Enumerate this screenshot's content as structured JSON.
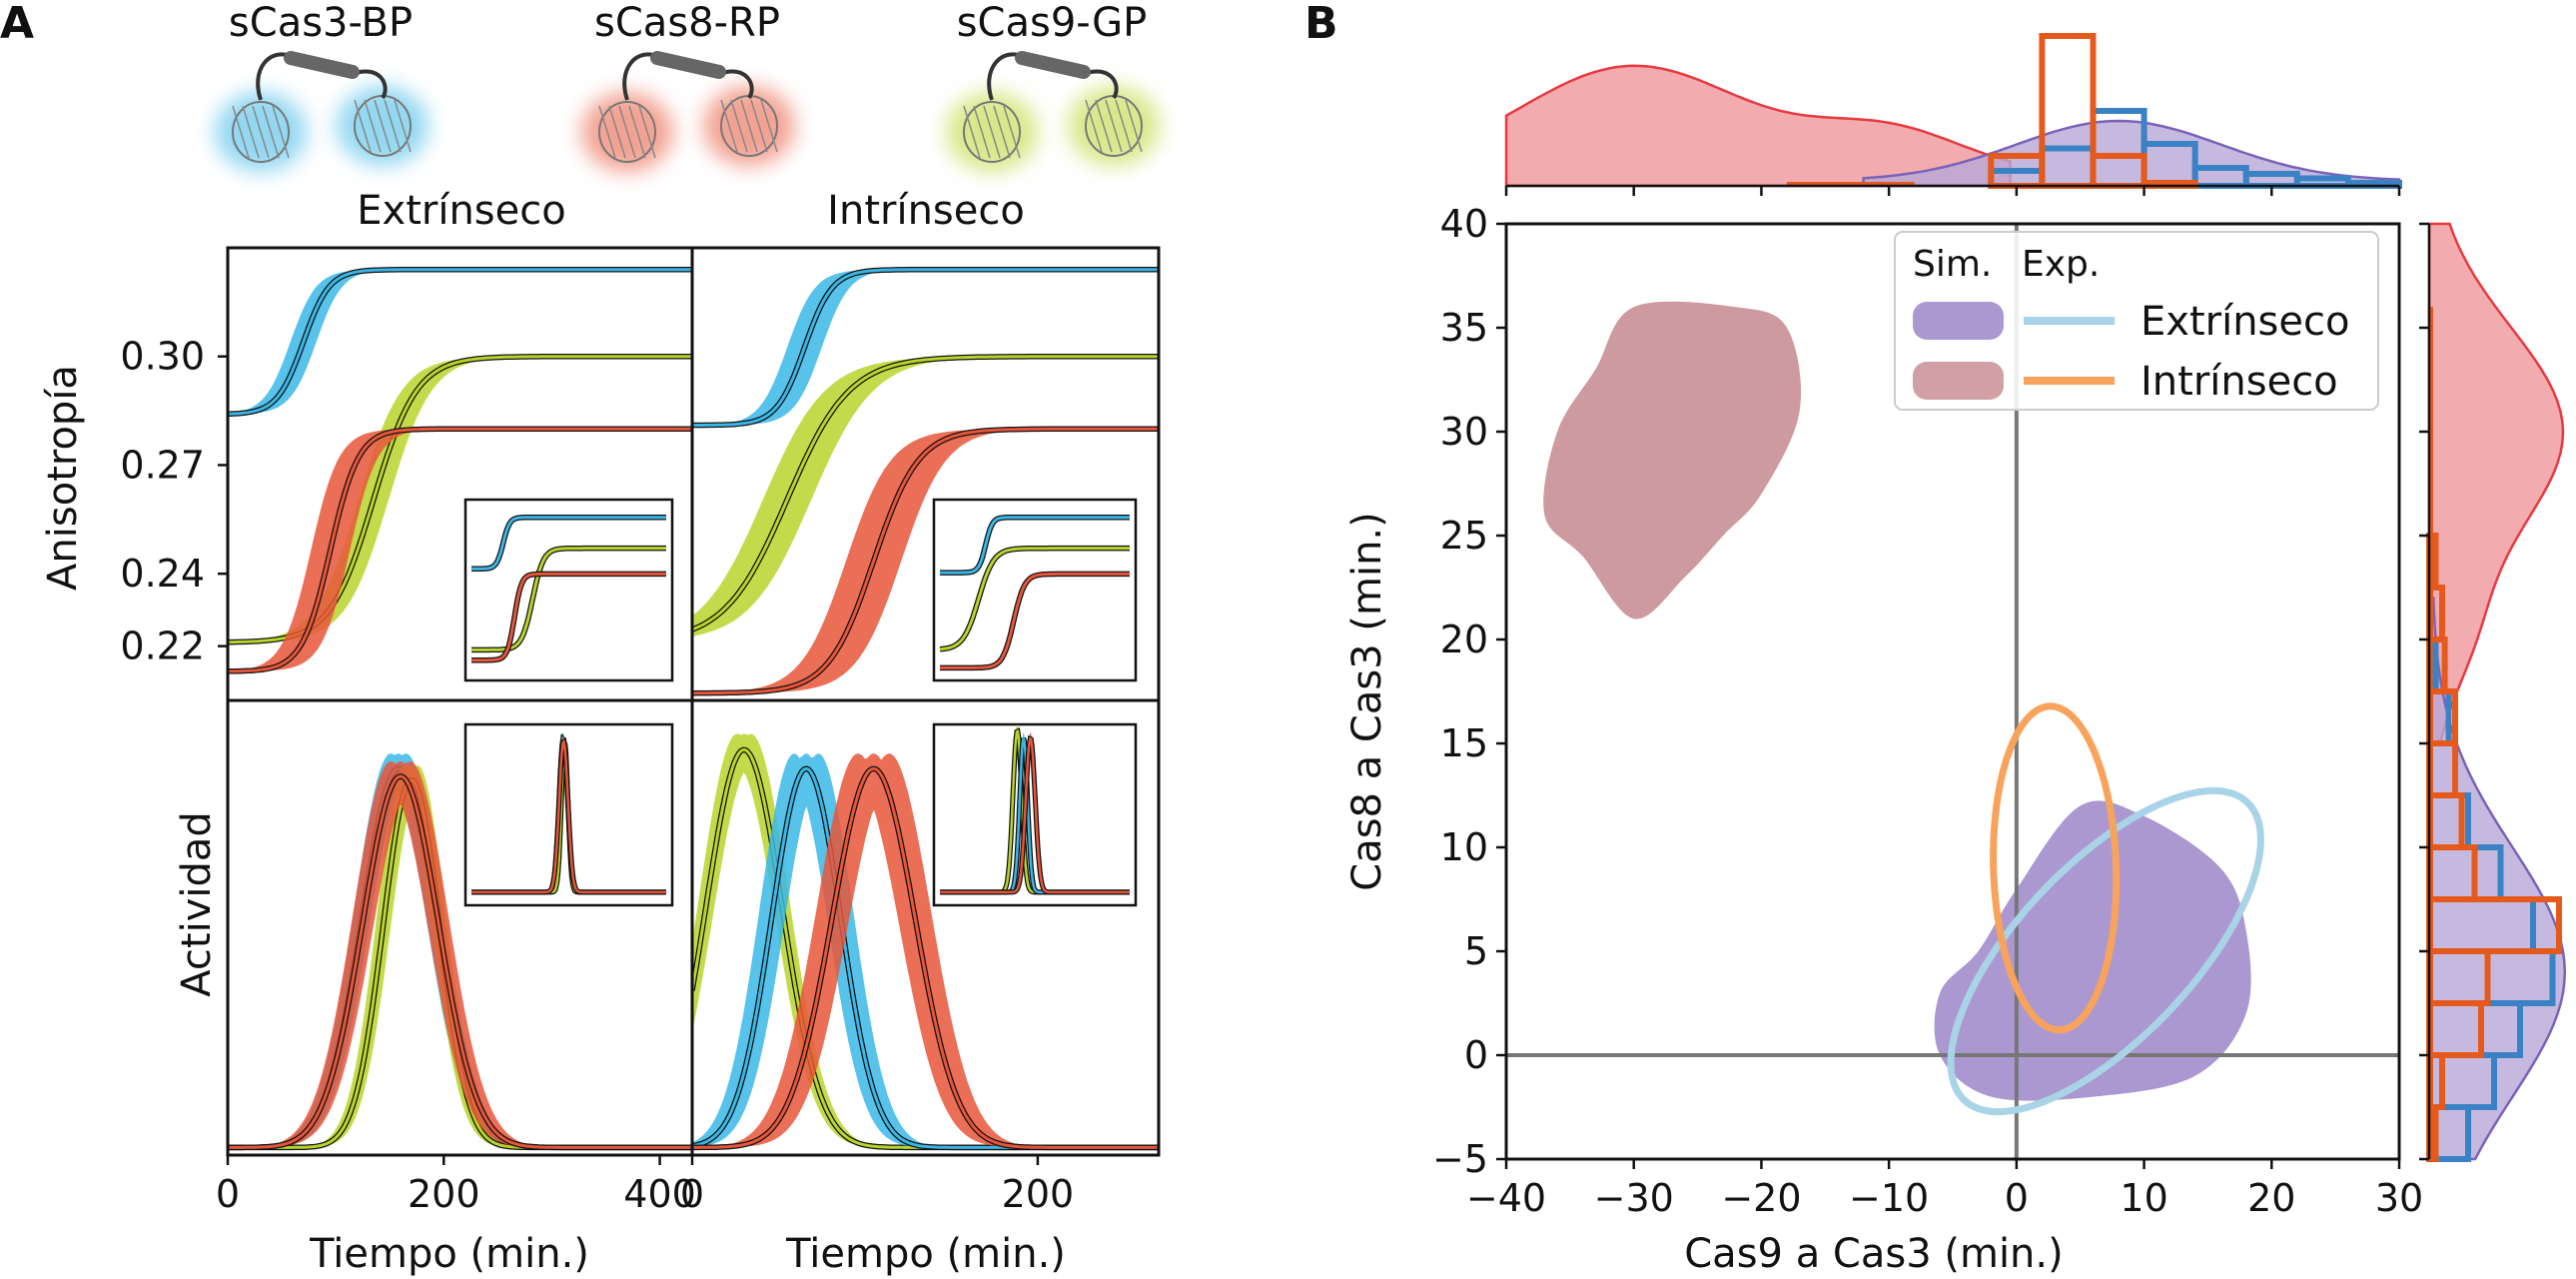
{
  "panel_labels": [
    "A",
    "B"
  ],
  "sensors": [
    "sCas3-BP",
    "sCas8-RP",
    "sCas9-GP"
  ],
  "colors": {
    "cas3": "#3ab7e6",
    "cas8": "#e8563a",
    "cas9": "#b9d52c",
    "sim_extrinsic": "#9e86c8",
    "sim_intrinsic": "#c88f95",
    "exp_extrinsic": "#a9d3e6",
    "exp_intrinsic": "#f7a35c",
    "hist_kde_red": "#e8393f",
    "hist_blue": "#3a82c4",
    "hist_orange": "#e55a1c"
  },
  "chart_data": [
    {
      "id": "A-top-left",
      "type": "line",
      "column_title": "Extrínseco",
      "ylabel": "Anisotropía",
      "xlim": [
        0,
        430
      ],
      "ylim": [
        0.205,
        0.33
      ],
      "yticks": [
        "0.30",
        "0.27",
        "0.24",
        "0.22"
      ],
      "ytick_values": [
        0.3,
        0.27,
        0.24,
        0.22
      ],
      "series": [
        {
          "key": "cas3",
          "base": 0.284,
          "top": 0.324,
          "t50": 70,
          "width": 12,
          "band": 12
        },
        {
          "key": "cas9",
          "base": 0.221,
          "top": 0.3,
          "t50": 135,
          "width": 20,
          "band": 14
        },
        {
          "key": "cas8",
          "base": 0.213,
          "top": 0.28,
          "t50": 95,
          "width": 13,
          "band": 18
        }
      ]
    },
    {
      "id": "A-top-right",
      "type": "line",
      "column_title": "Intrínseco",
      "xlim": [
        0,
        270
      ],
      "ylim": [
        0.205,
        0.33
      ],
      "series": [
        {
          "key": "cas3",
          "base": 0.281,
          "top": 0.324,
          "t50": 65,
          "width": 8,
          "band": 10
        },
        {
          "key": "cas9",
          "base": 0.221,
          "top": 0.3,
          "t50": 55,
          "width": 18,
          "band": 14
        },
        {
          "key": "cas8",
          "base": 0.207,
          "top": 0.28,
          "t50": 105,
          "width": 13,
          "band": 16
        }
      ]
    },
    {
      "id": "A-bottom-left",
      "type": "line",
      "ylabel": "Actividad",
      "xlabel": "Tiempo (min.)",
      "xlim": [
        0,
        430
      ],
      "xticks": [
        0,
        200,
        400
      ],
      "series": [
        {
          "key": "cas3",
          "peak": 158,
          "sigma": 34,
          "height": 1.0,
          "band": 14
        },
        {
          "key": "cas9",
          "peak": 170,
          "sigma": 26,
          "height": 0.97,
          "band": 12
        },
        {
          "key": "cas8",
          "peak": 160,
          "sigma": 35,
          "height": 0.98,
          "band": 18
        }
      ]
    },
    {
      "id": "A-bottom-right",
      "type": "line",
      "xlabel": "Tiempo (min.)",
      "xlim": [
        0,
        270
      ],
      "xticks": [
        0,
        200
      ],
      "series": [
        {
          "key": "cas9",
          "peak": 30,
          "sigma": 22,
          "height": 1.05,
          "band": 8
        },
        {
          "key": "cas3",
          "peak": 66,
          "sigma": 20,
          "height": 1.0,
          "band": 14
        },
        {
          "key": "cas8",
          "peak": 105,
          "sigma": 24,
          "height": 1.0,
          "band": 18
        }
      ]
    },
    {
      "id": "B-main",
      "type": "scatter",
      "xlabel": "Cas9 a Cas3 (min.)",
      "ylabel": "Cas8 a Cas3 (min.)",
      "xlim": [
        -40,
        30
      ],
      "ylim": [
        -5,
        40
      ],
      "xticks": [
        -40,
        -30,
        -20,
        -10,
        0,
        10,
        20,
        30
      ],
      "yticks": [
        -5,
        0,
        5,
        10,
        15,
        20,
        25,
        30,
        35,
        40
      ],
      "legend": {
        "placement": "top-right",
        "header_sim": "Sim.",
        "header_exp": "Exp.",
        "entries": [
          "Extrínseco",
          "Intrínseco"
        ]
      },
      "sim_intrinsic_region": [
        [
          -30,
          36
        ],
        [
          -22,
          36
        ],
        [
          -18,
          35
        ],
        [
          -17,
          31
        ],
        [
          -20,
          27
        ],
        [
          -23,
          25
        ],
        [
          -26,
          23
        ],
        [
          -30,
          21
        ],
        [
          -34,
          24
        ],
        [
          -37,
          26
        ],
        [
          -36,
          30
        ],
        [
          -33,
          33
        ]
      ],
      "sim_extrinsic_region": [
        [
          5,
          12
        ],
        [
          10,
          11.5
        ],
        [
          16,
          9
        ],
        [
          18,
          6
        ],
        [
          18,
          2
        ],
        [
          14,
          -1
        ],
        [
          6,
          -2
        ],
        [
          -2,
          -2
        ],
        [
          -6,
          0
        ],
        [
          -6,
          3
        ],
        [
          -3,
          5
        ],
        [
          0,
          8
        ]
      ],
      "exp_extrinsic_ellipse": {
        "cx": 7,
        "cy": 5,
        "rx": 13.5,
        "ry": 5,
        "rotation_deg": 28
      },
      "exp_intrinsic_ellipse": {
        "cx": 3,
        "cy": 9,
        "rx": 4.8,
        "ry": 7.8,
        "rotation_deg": 4
      }
    },
    {
      "id": "B-top-marginal",
      "type": "area",
      "axis": "Cas9 a Cas3 (min.)",
      "histogram_bins": [
        -2,
        2,
        6,
        10,
        14,
        18,
        22,
        26,
        30
      ],
      "blue_counts": [
        0.1,
        0.25,
        0.5,
        0.28,
        0.12,
        0.08,
        0.05,
        0.02
      ],
      "orange_counts": [
        0.2,
        1.0,
        0.2,
        0.02,
        0.0,
        0.0,
        0.0,
        0.0
      ]
    },
    {
      "id": "B-right-marginal",
      "type": "area",
      "axis": "Cas8 a Cas3 (min.)",
      "histogram_bins": [
        -5,
        -2.5,
        0,
        2.5,
        5,
        7.5,
        10,
        12.5,
        15,
        17.5,
        20,
        22.5,
        25
      ],
      "blue_counts": [
        0.3,
        0.5,
        0.7,
        0.95,
        0.8,
        0.55,
        0.3,
        0.2,
        0.15,
        0.05,
        0.0,
        0.0
      ],
      "orange_counts": [
        0.05,
        0.1,
        0.4,
        0.45,
        1.0,
        0.35,
        0.25,
        0.2,
        0.2,
        0.12,
        0.1,
        0.05
      ]
    }
  ]
}
